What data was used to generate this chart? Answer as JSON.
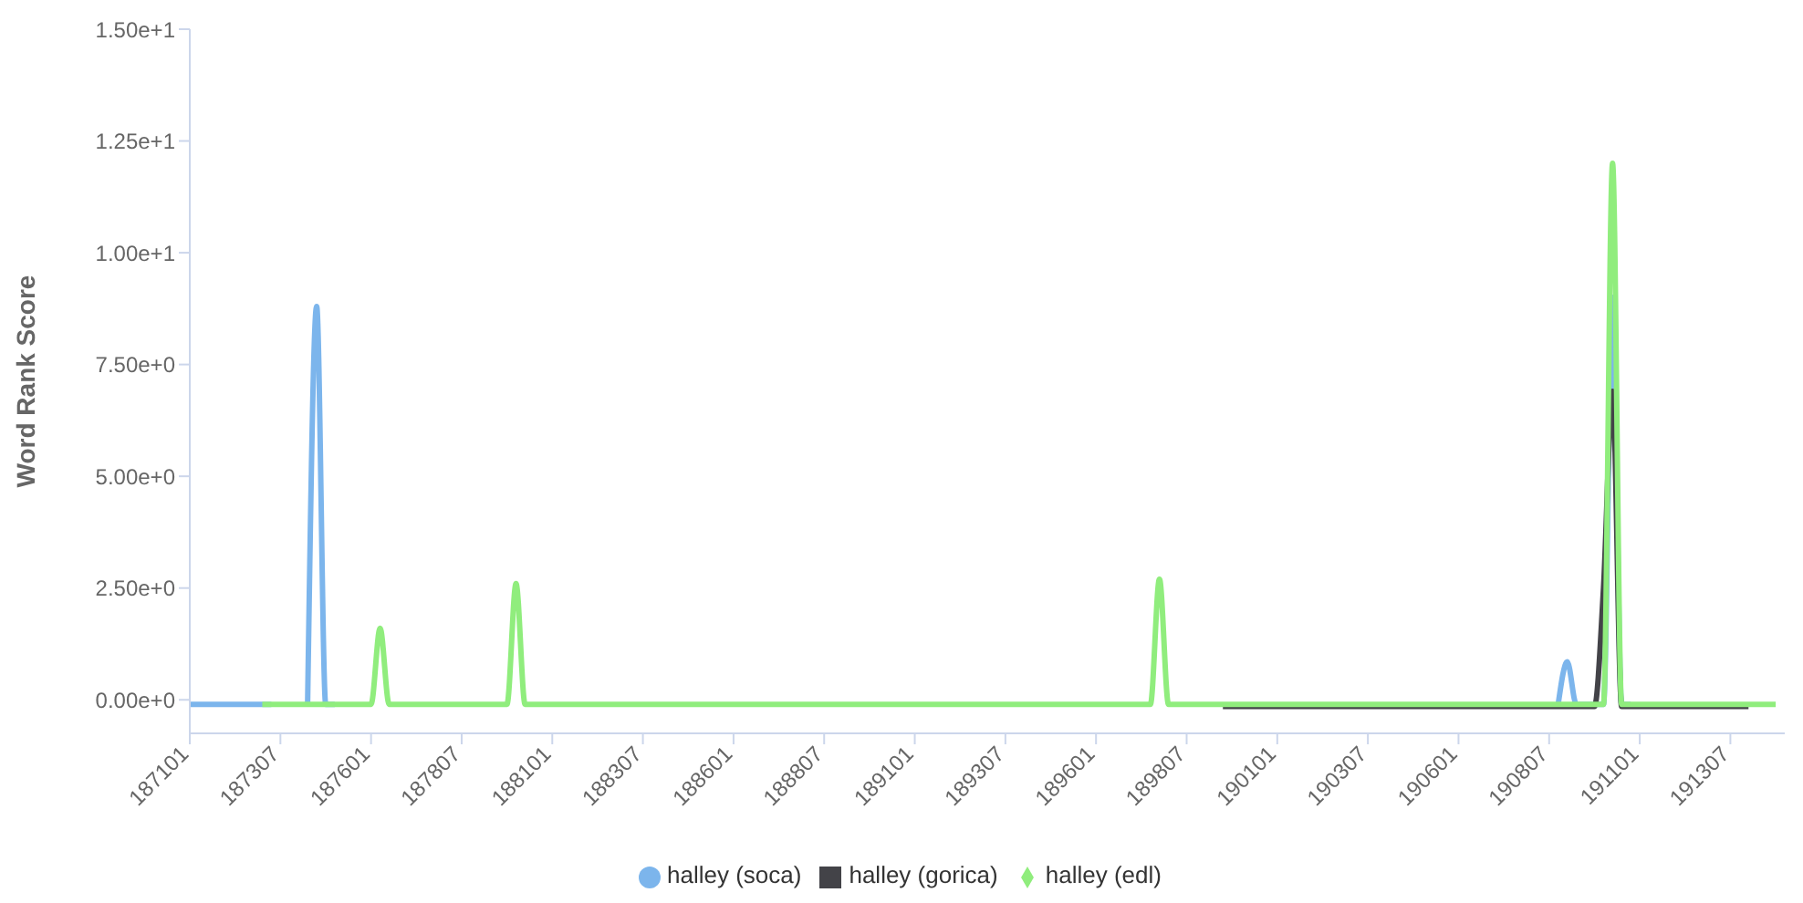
{
  "chart_data": {
    "type": "line",
    "ylabel": "Word Rank Score",
    "categories": [
      "187101",
      null,
      null,
      null,
      null,
      null,
      null,
      null,
      null,
      null,
      "187307",
      null,
      null,
      null,
      null,
      null,
      null,
      null,
      null,
      null,
      "187601",
      null,
      null,
      null,
      null,
      null,
      null,
      null,
      null,
      null,
      "187807",
      null,
      null,
      null,
      null,
      null,
      null,
      null,
      null,
      null,
      "188101",
      null,
      null,
      null,
      null,
      null,
      null,
      null,
      null,
      null,
      "188307",
      null,
      null,
      null,
      null,
      null,
      null,
      null,
      null,
      null,
      "188601",
      null,
      null,
      null,
      null,
      null,
      null,
      null,
      null,
      null,
      "188807",
      null,
      null,
      null,
      null,
      null,
      null,
      null,
      null,
      null,
      "189101",
      null,
      null,
      null,
      null,
      null,
      null,
      null,
      null,
      null,
      "189307",
      null,
      null,
      null,
      null,
      null,
      null,
      null,
      null,
      null,
      "189601",
      null,
      null,
      null,
      null,
      null,
      null,
      null,
      null,
      null,
      "189807",
      null,
      null,
      null,
      null,
      null,
      null,
      null,
      null,
      null,
      "190101",
      null,
      null,
      null,
      null,
      null,
      null,
      null,
      null,
      null,
      "190307",
      null,
      null,
      null,
      null,
      null,
      null,
      null,
      null,
      null,
      "190601",
      null,
      null,
      null,
      null,
      null,
      null,
      null,
      null,
      null,
      "190807",
      null,
      null,
      null,
      null,
      null,
      null,
      null,
      null,
      null,
      "191101",
      null,
      null,
      null,
      null,
      null,
      null,
      null,
      null,
      null,
      "191307",
      null,
      null,
      null,
      null,
      null,
      null
    ],
    "series": [
      {
        "name": "halley (soca)",
        "color": "#7cb5ec",
        "values": [
          -0.1,
          -0.1,
          -0.1,
          -0.1,
          -0.1,
          -0.1,
          -0.1,
          -0.1,
          -0.1,
          -0.1,
          null,
          null,
          null,
          -0.1,
          8.8,
          -0.1,
          -0.1,
          null,
          null,
          null,
          null,
          null,
          null,
          null,
          null,
          null,
          null,
          null,
          null,
          null,
          null,
          null,
          null,
          null,
          null,
          null,
          null,
          null,
          null,
          null,
          null,
          null,
          null,
          null,
          null,
          null,
          null,
          null,
          null,
          null,
          null,
          null,
          null,
          null,
          null,
          null,
          null,
          null,
          null,
          null,
          null,
          null,
          null,
          null,
          null,
          null,
          null,
          null,
          null,
          null,
          null,
          null,
          null,
          null,
          null,
          null,
          null,
          null,
          null,
          null,
          null,
          null,
          null,
          null,
          null,
          null,
          null,
          null,
          null,
          null,
          null,
          null,
          null,
          null,
          null,
          null,
          null,
          null,
          null,
          null,
          null,
          null,
          null,
          null,
          null,
          null,
          null,
          null,
          null,
          null,
          null,
          null,
          null,
          null,
          null,
          null,
          null,
          null,
          null,
          null,
          null,
          null,
          null,
          null,
          null,
          null,
          null,
          null,
          null,
          null,
          null,
          null,
          null,
          null,
          null,
          null,
          null,
          null,
          null,
          null,
          null,
          null,
          null,
          null,
          null,
          null,
          null,
          null,
          null,
          null,
          null,
          -0.1,
          0.85,
          -0.1,
          -0.1,
          -0.1,
          -0.1,
          9.0,
          -0.1,
          -0.1,
          null,
          null,
          null,
          null,
          null,
          null,
          null,
          null,
          null,
          null,
          null,
          null,
          null,
          null,
          null,
          null,
          null
        ]
      },
      {
        "name": "halley (gorica)",
        "color": "#434348",
        "values": [
          null,
          null,
          null,
          null,
          null,
          null,
          null,
          null,
          null,
          null,
          null,
          null,
          null,
          null,
          null,
          null,
          null,
          null,
          null,
          null,
          null,
          null,
          null,
          null,
          null,
          null,
          null,
          null,
          null,
          null,
          null,
          null,
          null,
          null,
          null,
          null,
          null,
          null,
          null,
          null,
          null,
          null,
          null,
          null,
          null,
          null,
          null,
          null,
          null,
          null,
          null,
          null,
          null,
          null,
          null,
          null,
          null,
          null,
          null,
          null,
          null,
          null,
          null,
          null,
          null,
          null,
          null,
          null,
          null,
          null,
          null,
          null,
          null,
          null,
          null,
          null,
          null,
          null,
          null,
          null,
          null,
          null,
          null,
          null,
          null,
          null,
          null,
          null,
          null,
          null,
          null,
          null,
          null,
          null,
          null,
          null,
          null,
          null,
          null,
          null,
          null,
          null,
          null,
          null,
          null,
          null,
          null,
          null,
          null,
          null,
          null,
          null,
          null,
          null,
          -0.15,
          -0.15,
          -0.15,
          -0.15,
          -0.15,
          -0.15,
          -0.15,
          -0.15,
          -0.15,
          -0.15,
          -0.15,
          -0.15,
          -0.15,
          -0.15,
          -0.15,
          -0.15,
          -0.15,
          -0.15,
          -0.15,
          -0.15,
          -0.15,
          -0.15,
          -0.15,
          -0.15,
          -0.15,
          -0.15,
          -0.15,
          -0.15,
          -0.15,
          -0.15,
          -0.15,
          -0.15,
          -0.15,
          -0.15,
          -0.15,
          -0.15,
          -0.15,
          -0.15,
          -0.15,
          -0.15,
          -0.15,
          -0.15,
          2.5,
          6.9,
          -0.15,
          -0.15,
          -0.15,
          -0.15,
          -0.15,
          -0.15,
          -0.15,
          -0.15,
          -0.15,
          -0.15,
          -0.15,
          -0.15,
          -0.15,
          -0.15,
          -0.15,
          null,
          null,
          null,
          null
        ]
      },
      {
        "name": "halley (edl)",
        "color": "#90ed7d",
        "values": [
          null,
          null,
          null,
          null,
          null,
          null,
          null,
          null,
          -0.1,
          -0.1,
          -0.1,
          -0.1,
          -0.1,
          -0.1,
          -0.1,
          -0.1,
          -0.1,
          -0.1,
          -0.1,
          -0.1,
          -0.1,
          1.6,
          -0.1,
          -0.1,
          -0.1,
          -0.1,
          -0.1,
          -0.1,
          -0.1,
          -0.1,
          -0.1,
          -0.1,
          -0.1,
          -0.1,
          -0.1,
          -0.1,
          2.6,
          -0.1,
          -0.1,
          -0.1,
          -0.1,
          -0.1,
          -0.1,
          -0.1,
          -0.1,
          -0.1,
          -0.1,
          -0.1,
          -0.1,
          -0.1,
          -0.1,
          -0.1,
          -0.1,
          -0.1,
          -0.1,
          -0.1,
          -0.1,
          -0.1,
          -0.1,
          -0.1,
          -0.1,
          -0.1,
          -0.1,
          -0.1,
          -0.1,
          -0.1,
          -0.1,
          -0.1,
          -0.1,
          -0.1,
          -0.1,
          -0.1,
          -0.1,
          -0.1,
          -0.1,
          -0.1,
          -0.1,
          -0.1,
          -0.1,
          -0.1,
          -0.1,
          -0.1,
          -0.1,
          -0.1,
          -0.1,
          -0.1,
          -0.1,
          -0.1,
          -0.1,
          -0.1,
          -0.1,
          -0.1,
          -0.1,
          -0.1,
          -0.1,
          -0.1,
          -0.1,
          -0.1,
          -0.1,
          -0.1,
          -0.1,
          -0.1,
          -0.1,
          -0.1,
          -0.1,
          -0.1,
          -0.1,
          2.7,
          -0.1,
          -0.1,
          -0.1,
          -0.1,
          -0.1,
          -0.1,
          -0.1,
          -0.1,
          -0.1,
          -0.1,
          -0.1,
          -0.1,
          -0.1,
          -0.1,
          -0.1,
          -0.1,
          -0.1,
          -0.1,
          -0.1,
          -0.1,
          -0.1,
          -0.1,
          -0.1,
          -0.1,
          -0.1,
          -0.1,
          -0.1,
          -0.1,
          -0.1,
          -0.1,
          -0.1,
          -0.1,
          -0.1,
          -0.1,
          -0.1,
          -0.1,
          -0.1,
          -0.1,
          -0.1,
          -0.1,
          -0.1,
          -0.1,
          -0.1,
          -0.1,
          -0.1,
          -0.1,
          -0.1,
          -0.1,
          -0.1,
          12.0,
          -0.1,
          -0.1,
          -0.1,
          -0.1,
          -0.1,
          -0.1,
          -0.1,
          -0.1,
          -0.1,
          -0.1,
          -0.1,
          -0.1,
          -0.1,
          -0.1,
          -0.1,
          -0.1,
          -0.1,
          -0.1,
          null
        ]
      }
    ],
    "ylim": [
      -0.75,
      15
    ],
    "yticks": [
      {
        "value": 0,
        "label": "0.00e+0"
      },
      {
        "value": 2.5,
        "label": "2.50e+0"
      },
      {
        "value": 5,
        "label": "5.00e+0"
      },
      {
        "value": 7.5,
        "label": "7.50e+0"
      },
      {
        "value": 10,
        "label": "1.00e+1"
      },
      {
        "value": 12.5,
        "label": "1.25e+1"
      },
      {
        "value": 15,
        "label": "1.50e+1"
      }
    ],
    "grid": false,
    "legend": "bottom",
    "marker": "none",
    "line_style": "solid"
  }
}
